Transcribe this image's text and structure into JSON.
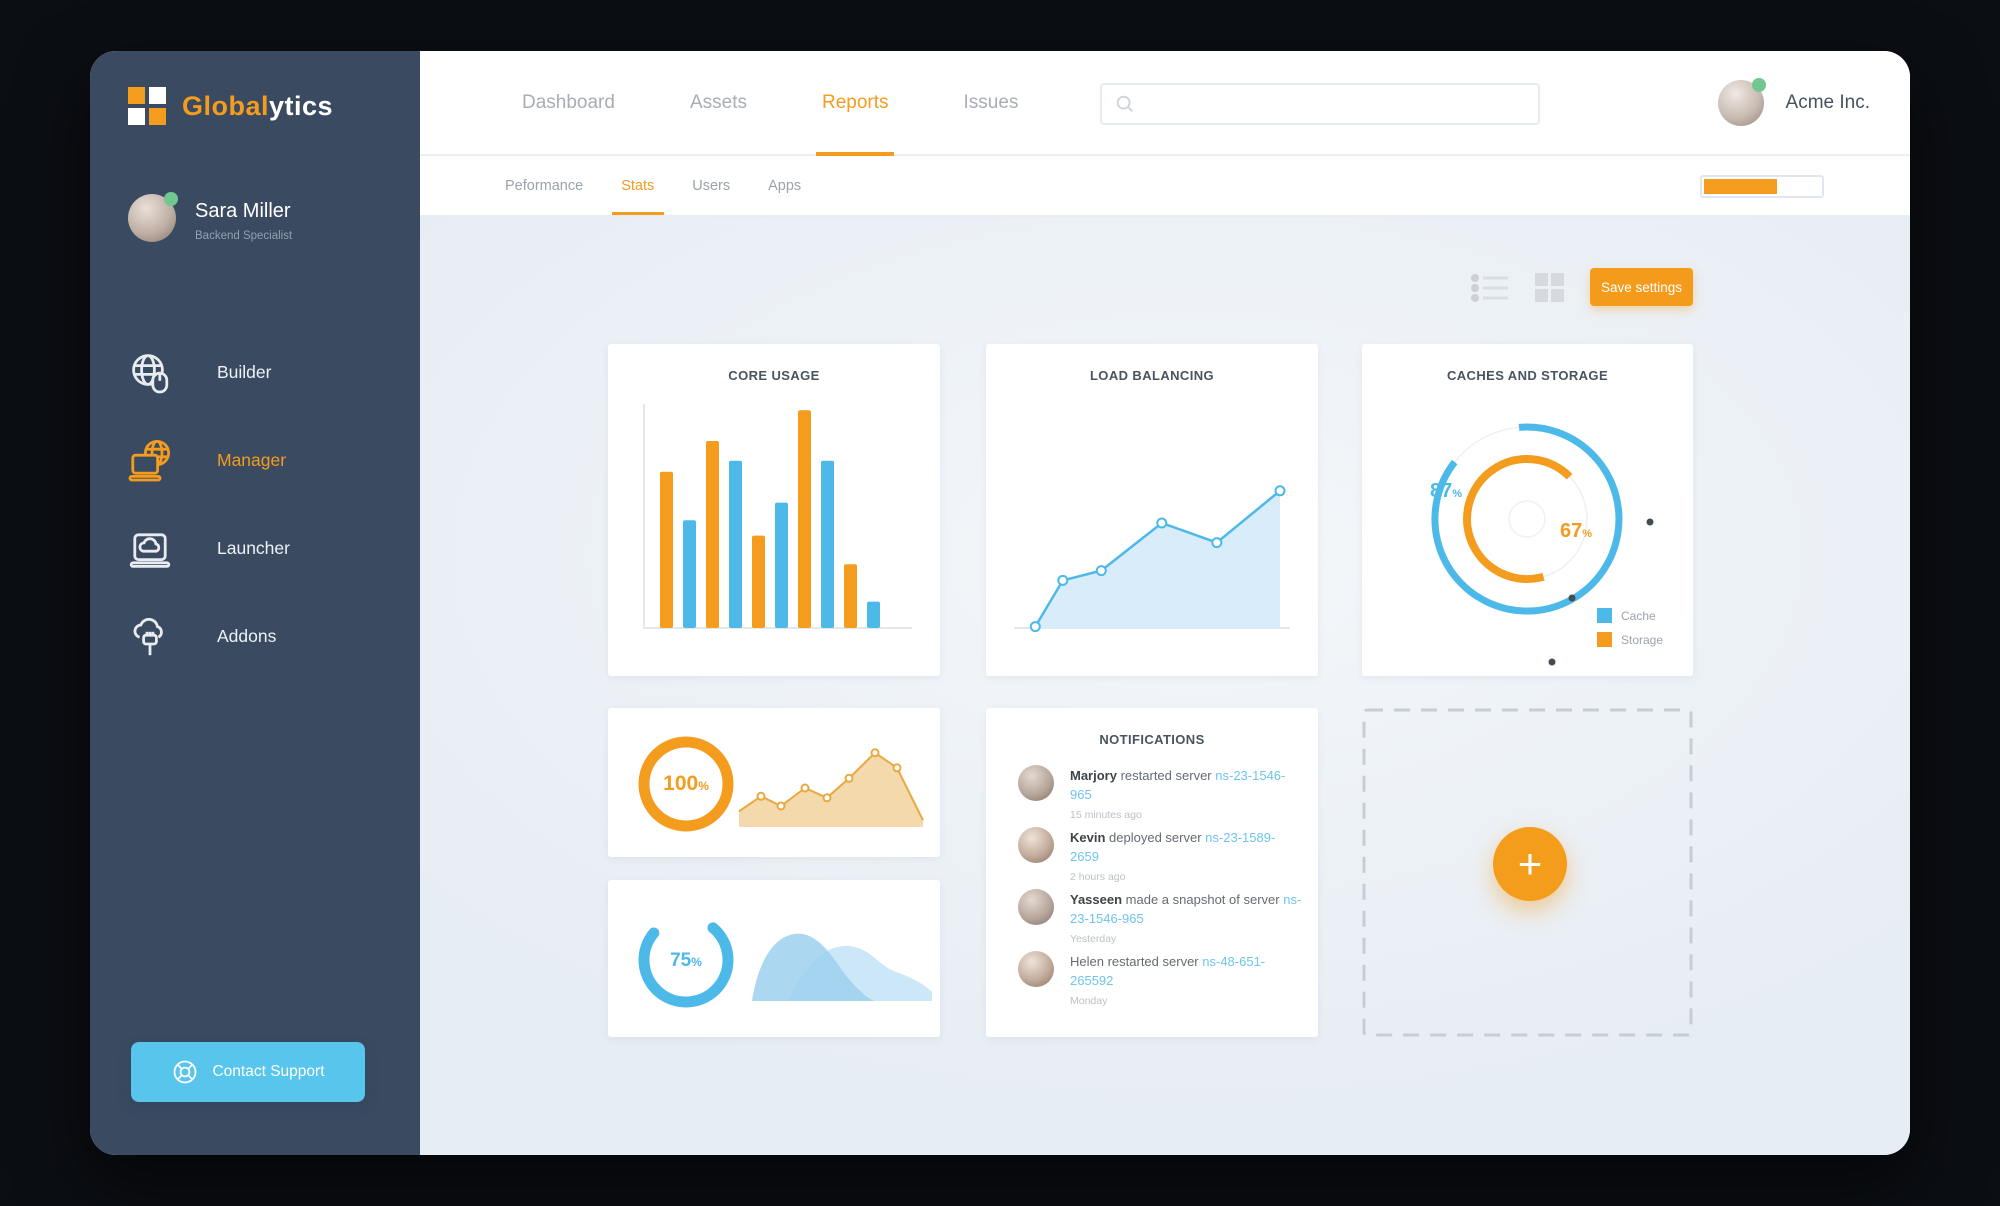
{
  "colors": {
    "orange": "#F39C1E",
    "blue": "#4CB9E9",
    "link_blue": "#6FC4EC",
    "sidebar_bg": "#3A4A60",
    "support_blue": "#58C5EC",
    "green_status": "#72C791",
    "content_bg": "#ECF1F6"
  },
  "sidebar": {
    "logo": {
      "text_primary": "Global",
      "text_secondary": "ytics",
      "icon": "logo-grid-icon"
    },
    "user": {
      "name": "Sara Miller",
      "role": "Backend Specialist",
      "status": "online"
    },
    "items": [
      {
        "label": "Builder",
        "icon": "globe-pointer-icon",
        "active": false
      },
      {
        "label": "Manager",
        "icon": "laptop-globe-icon",
        "active": true
      },
      {
        "label": "Launcher",
        "icon": "laptop-cloud-icon",
        "active": false
      },
      {
        "label": "Addons",
        "icon": "cloud-plug-icon",
        "active": false
      }
    ],
    "support_button": {
      "label": "Contact Support",
      "icon": "lifebuoy-icon"
    }
  },
  "header": {
    "nav": [
      {
        "label": "Dashboard",
        "active": false
      },
      {
        "label": "Assets",
        "active": false
      },
      {
        "label": "Reports",
        "active": true
      },
      {
        "label": "Issues",
        "active": false
      }
    ],
    "search": {
      "placeholder": "",
      "value": "",
      "icon": "search-icon"
    },
    "account": {
      "name": "Acme Inc.",
      "status": "online"
    }
  },
  "subnav": {
    "tabs": [
      {
        "label": "Peformance",
        "active": false
      },
      {
        "label": "Stats",
        "active": true
      },
      {
        "label": "Users",
        "active": false
      },
      {
        "label": "Apps",
        "active": false
      }
    ],
    "progress": {
      "value_pct": 63
    }
  },
  "toolbar": {
    "save_label": "Save settings",
    "view_icons": [
      "list-view-icon",
      "grid-view-icon"
    ]
  },
  "cards": {
    "notifications": {
      "title": "NOTIFICATIONS",
      "items": [
        {
          "name": "Marjory",
          "name_bold": true,
          "action": "restarted server",
          "server": "ns-23-1546-965",
          "time": "15 minutes ago"
        },
        {
          "name": "Kevin",
          "name_bold": true,
          "action": "deployed server",
          "server": "ns-23-1589-2659",
          "time": "2 hours ago"
        },
        {
          "name": "Yasseen",
          "name_bold": true,
          "action": "made a snapshot of server",
          "server": "ns-23-1546-965",
          "time": "Yesterday"
        },
        {
          "name": "Helen",
          "name_bold": false,
          "action": "restarted server",
          "server": "ns-48-651-265592",
          "time": "Monday"
        }
      ]
    },
    "add_card": {
      "plus_label": "+"
    }
  },
  "chart_data": [
    {
      "id": "core-usage",
      "type": "bar",
      "title": "CORE USAGE",
      "values": [
        71,
        49,
        85,
        76,
        42,
        57,
        99,
        76,
        29,
        12
      ],
      "bar_colors_alternate": [
        "#F39C1E",
        "#4CB9E9"
      ],
      "ylim": [
        0,
        100
      ],
      "grid": false,
      "axes": "left-bottom"
    },
    {
      "id": "load-balancing",
      "type": "area",
      "title": "LOAD BALANCING",
      "points_pct": [
        [
          7,
          1
        ],
        [
          17,
          34
        ],
        [
          31,
          41
        ],
        [
          53,
          75
        ],
        [
          73,
          61
        ],
        [
          96,
          98
        ]
      ],
      "line_color": "#4CB9E9",
      "fill_color": "#D8EDF9",
      "markers": true,
      "grid": false
    },
    {
      "id": "caches-storage",
      "type": "donut",
      "title": "CACHES AND STORAGE",
      "unit": "%",
      "series": [
        {
          "name": "Cache",
          "value_pct": 87,
          "color": "#4CB9E9"
        },
        {
          "name": "Storage",
          "value_pct": 67,
          "color": "#F39C1E"
        }
      ],
      "legend_position": "bottom-right"
    },
    {
      "id": "uptime",
      "type": "donut+area",
      "donut_value_pct": 100,
      "unit": "%",
      "donut_color": "#F39C1E",
      "area_points_pct": [
        [
          3,
          21
        ],
        [
          14,
          41
        ],
        [
          24,
          28
        ],
        [
          36,
          52
        ],
        [
          47,
          39
        ],
        [
          58,
          65
        ],
        [
          71,
          99
        ],
        [
          82,
          79
        ],
        [
          95,
          9
        ]
      ],
      "line_color": "#E9A83E",
      "fill_color": "#F3D9AC"
    },
    {
      "id": "capacity",
      "type": "donut+waves",
      "donut_value_pct": 75,
      "unit": "%",
      "donut_color": "#4CB9E9",
      "wave_colors": [
        "#CBE7F8",
        "#9FD2EF"
      ]
    }
  ]
}
